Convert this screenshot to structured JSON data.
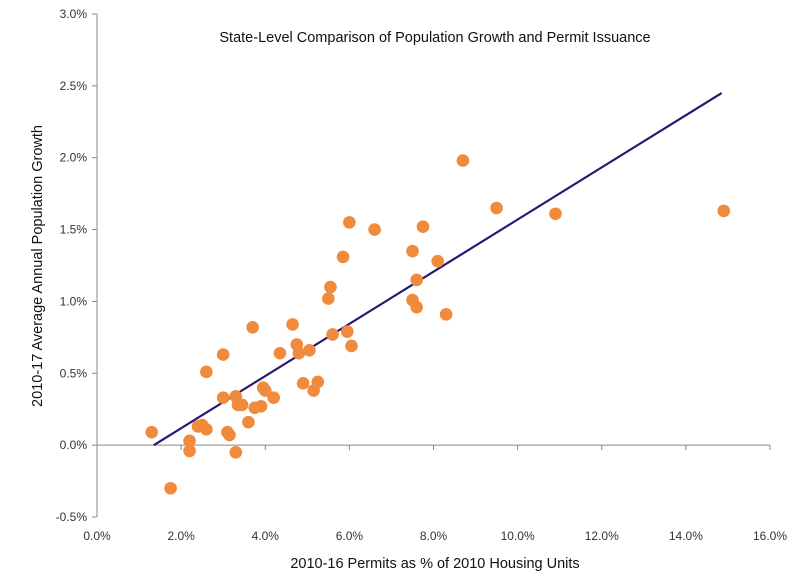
{
  "chart_data": {
    "type": "scatter",
    "title": "State-Level Comparison of Population Growth and Permit Issuance",
    "xlabel": "2010-16 Permits as % of 2010 Housing Units",
    "ylabel": "2010-17 Average Annual Population Growth",
    "xlim": [
      0,
      16
    ],
    "ylim": [
      -0.5,
      3.0
    ],
    "x_ticks": [
      0,
      2,
      4,
      6,
      8,
      10,
      12,
      14,
      16
    ],
    "y_ticks": [
      -0.5,
      0,
      0.5,
      1.0,
      1.5,
      2.0,
      2.5,
      3.0
    ],
    "x_tick_labels": [
      "0.0%",
      "2.0%",
      "4.0%",
      "6.0%",
      "8.0%",
      "10.0%",
      "12.0%",
      "14.0%",
      "16.0%"
    ],
    "y_tick_labels": [
      "-0.5%",
      "0.0%",
      "0.5%",
      "1.0%",
      "1.5%",
      "2.0%",
      "2.5%",
      "3.0%"
    ],
    "grid": false,
    "colors": {
      "points": "#F08A3C",
      "trendline": "#2A1670",
      "axis": "#888888"
    },
    "series": [
      {
        "points": [
          {
            "x": 1.3,
            "y": 0.09
          },
          {
            "x": 1.75,
            "y": -0.3
          },
          {
            "x": 2.2,
            "y": 0.03
          },
          {
            "x": 2.2,
            "y": -0.04
          },
          {
            "x": 2.4,
            "y": 0.13
          },
          {
            "x": 2.5,
            "y": 0.14
          },
          {
            "x": 2.6,
            "y": 0.11
          },
          {
            "x": 2.6,
            "y": 0.51
          },
          {
            "x": 3.0,
            "y": 0.63
          },
          {
            "x": 3.0,
            "y": 0.33
          },
          {
            "x": 3.1,
            "y": 0.09
          },
          {
            "x": 3.15,
            "y": 0.07
          },
          {
            "x": 3.3,
            "y": 0.34
          },
          {
            "x": 3.3,
            "y": -0.05
          },
          {
            "x": 3.35,
            "y": 0.28
          },
          {
            "x": 3.45,
            "y": 0.28
          },
          {
            "x": 3.6,
            "y": 0.16
          },
          {
            "x": 3.7,
            "y": 0.82
          },
          {
            "x": 3.75,
            "y": 0.26
          },
          {
            "x": 3.9,
            "y": 0.27
          },
          {
            "x": 3.95,
            "y": 0.4
          },
          {
            "x": 4.0,
            "y": 0.38
          },
          {
            "x": 4.2,
            "y": 0.33
          },
          {
            "x": 4.35,
            "y": 0.64
          },
          {
            "x": 4.65,
            "y": 0.84
          },
          {
            "x": 4.75,
            "y": 0.7
          },
          {
            "x": 4.8,
            "y": 0.64
          },
          {
            "x": 4.9,
            "y": 0.43
          },
          {
            "x": 5.05,
            "y": 0.66
          },
          {
            "x": 5.15,
            "y": 0.38
          },
          {
            "x": 5.25,
            "y": 0.44
          },
          {
            "x": 5.5,
            "y": 1.02
          },
          {
            "x": 5.55,
            "y": 1.1
          },
          {
            "x": 5.6,
            "y": 0.77
          },
          {
            "x": 5.85,
            "y": 1.31
          },
          {
            "x": 5.95,
            "y": 0.79
          },
          {
            "x": 6.0,
            "y": 1.55
          },
          {
            "x": 6.05,
            "y": 0.69
          },
          {
            "x": 6.6,
            "y": 1.5
          },
          {
            "x": 7.5,
            "y": 1.35
          },
          {
            "x": 7.5,
            "y": 1.01
          },
          {
            "x": 7.6,
            "y": 1.15
          },
          {
            "x": 7.6,
            "y": 0.96
          },
          {
            "x": 7.75,
            "y": 1.52
          },
          {
            "x": 8.1,
            "y": 1.28
          },
          {
            "x": 8.3,
            "y": 0.91
          },
          {
            "x": 8.7,
            "y": 1.98
          },
          {
            "x": 9.5,
            "y": 1.65
          },
          {
            "x": 10.9,
            "y": 1.61
          },
          {
            "x": 14.9,
            "y": 1.63
          }
        ]
      }
    ],
    "trendline": {
      "x": [
        1.35,
        14.85
      ],
      "y": [
        0.0,
        2.45
      ]
    }
  }
}
